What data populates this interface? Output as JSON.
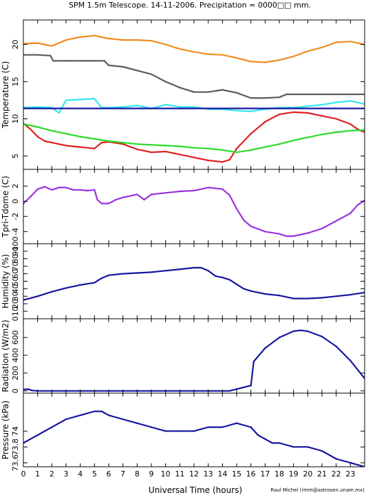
{
  "title": "SPM 1.5m Telescope. 14-11-2006. Precipitation = 0000□□ mm.",
  "credit": "Raul Michel (rmm@astrosen.unam.mx)",
  "chart_data": [
    {
      "type": "scatter",
      "ylabel": "Temperature (C)",
      "xlim": [
        0,
        24
      ],
      "ylim": [
        3.2,
        23.3
      ],
      "yticks": [
        5,
        10,
        15,
        20
      ],
      "series": [
        {
          "color": "#f08c1e",
          "x": [
            0,
            1,
            2,
            3,
            4,
            5,
            6,
            7,
            8,
            9,
            10,
            11,
            12,
            13,
            14,
            15,
            16,
            17,
            18,
            19,
            20,
            21,
            22,
            23,
            24
          ],
          "y": [
            20.1,
            20.2,
            19.8,
            20.6,
            21.0,
            21.2,
            20.8,
            20.6,
            20.6,
            20.5,
            20.0,
            19.4,
            19.0,
            18.7,
            18.6,
            18.2,
            17.7,
            17.6,
            17.9,
            18.4,
            19.1,
            19.6,
            20.3,
            20.4,
            20.0
          ]
        },
        {
          "color": "#5a5a5a",
          "x": [
            0,
            1,
            1.9,
            2.1,
            3,
            4,
            5,
            5.7,
            6,
            7,
            8,
            9,
            10,
            11,
            12,
            13,
            14,
            15,
            16,
            17,
            18,
            18.5,
            24
          ],
          "y": [
            18.6,
            18.6,
            18.5,
            17.8,
            17.8,
            17.8,
            17.8,
            17.8,
            17.2,
            17.0,
            16.5,
            16.0,
            15.0,
            14.2,
            13.6,
            13.6,
            13.9,
            13.5,
            12.8,
            12.8,
            12.9,
            13.3,
            13.3
          ]
        },
        {
          "color": "#30e8ec",
          "x": [
            0,
            1,
            2,
            2.5,
            3,
            4,
            5,
            5.5,
            6,
            7,
            8,
            9,
            10,
            11,
            12,
            13,
            14,
            15,
            16,
            17,
            18,
            19,
            20,
            21,
            22,
            23,
            24
          ],
          "y": [
            11.5,
            11.6,
            11.5,
            10.8,
            12.5,
            12.6,
            12.7,
            11.5,
            11.5,
            11.6,
            11.8,
            11.4,
            11.9,
            11.6,
            11.6,
            11.3,
            11.3,
            11.1,
            11.0,
            11.3,
            11.5,
            11.5,
            11.7,
            11.9,
            12.2,
            12.4,
            12.0
          ]
        },
        {
          "color": "#1414a0",
          "x": [
            0,
            24
          ],
          "y": [
            11.4,
            11.4
          ]
        },
        {
          "color": "#e01e1e",
          "x": [
            0,
            0.5,
            1,
            1.5,
            2,
            2.5,
            3,
            4,
            5,
            5.5,
            6,
            7,
            8,
            9,
            10,
            11,
            12,
            13,
            14,
            14.5,
            15,
            16,
            17,
            18,
            19,
            20,
            21,
            22,
            23,
            23.5,
            24
          ],
          "y": [
            9.4,
            8.6,
            7.6,
            7.0,
            6.8,
            6.6,
            6.4,
            6.2,
            6.0,
            6.8,
            6.9,
            6.6,
            5.9,
            5.5,
            5.6,
            5.2,
            4.8,
            4.4,
            4.2,
            4.5,
            6.0,
            8.0,
            9.6,
            10.6,
            10.9,
            10.8,
            10.4,
            10.0,
            9.3,
            8.6,
            8.2
          ]
        },
        {
          "color": "#28dc28",
          "x": [
            0,
            1,
            2,
            3,
            4,
            5,
            6,
            7,
            8,
            9,
            10,
            11,
            12,
            13,
            14,
            15,
            16,
            17,
            18,
            19,
            20,
            21,
            22,
            23,
            24
          ],
          "y": [
            9.3,
            8.9,
            8.4,
            8.0,
            7.6,
            7.3,
            7.0,
            6.8,
            6.6,
            6.5,
            6.4,
            6.3,
            6.1,
            6.0,
            5.8,
            5.5,
            5.8,
            6.2,
            6.6,
            7.1,
            7.5,
            7.9,
            8.2,
            8.4,
            8.5
          ]
        }
      ]
    },
    {
      "type": "scatter",
      "ylabel": "Tpri-Tdome (C)",
      "xlim": [
        0,
        24
      ],
      "ylim": [
        -5.6,
        4.2
      ],
      "yticks": [
        -4,
        -2,
        0,
        2
      ],
      "series": [
        {
          "color": "#9b30e0",
          "x": [
            0,
            0.5,
            1,
            1.5,
            2,
            2.5,
            3,
            3.5,
            4,
            4.5,
            5,
            5.2,
            5.5,
            6,
            6.5,
            7,
            8,
            8.5,
            9,
            10,
            11,
            12,
            13,
            14,
            14.5,
            15,
            15.5,
            16,
            17,
            18,
            18.5,
            19,
            20,
            21,
            22,
            23,
            23.5,
            24
          ],
          "y": [
            -0.3,
            0.6,
            1.6,
            1.9,
            1.5,
            1.8,
            1.8,
            1.5,
            1.5,
            1.4,
            1.5,
            0.2,
            -0.3,
            -0.3,
            0.2,
            0.5,
            0.9,
            0.2,
            0.9,
            1.1,
            1.3,
            1.4,
            1.8,
            1.6,
            0.8,
            -1.0,
            -2.5,
            -3.3,
            -4.0,
            -4.3,
            -4.6,
            -4.6,
            -4.2,
            -3.6,
            -2.6,
            -1.6,
            -0.5,
            0.1
          ]
        }
      ]
    },
    {
      "type": "scatter",
      "ylabel": "Humidity (%)",
      "xlim": [
        0,
        24
      ],
      "ylim": [
        0,
        100
      ],
      "yticks": [
        0,
        10,
        20,
        30,
        40,
        50,
        60,
        70,
        80,
        90,
        100
      ],
      "series": [
        {
          "color": "#1414a0",
          "x": [
            0,
            1,
            2,
            3,
            4,
            5,
            5.5,
            6,
            7,
            8,
            9,
            10,
            11,
            12,
            12.5,
            13,
            13.5,
            14,
            14.5,
            15,
            15.5,
            16,
            17,
            18,
            19,
            20,
            21,
            22,
            23,
            24
          ],
          "y": [
            25,
            30,
            36,
            41,
            45,
            48,
            54,
            58,
            60,
            61,
            62,
            64,
            66,
            68,
            68,
            64,
            57,
            55,
            52,
            46,
            40,
            37,
            33,
            31,
            27,
            27,
            28,
            30,
            32,
            35
          ]
        }
      ]
    },
    {
      "type": "scatter",
      "ylabel": "Radiation (W/m2)",
      "xlim": [
        0,
        24
      ],
      "ylim": [
        -25,
        810
      ],
      "yticks": [
        0,
        200,
        400,
        600
      ],
      "series": [
        {
          "color": "#1414a0",
          "x": [
            0,
            0.3,
            0.6,
            1,
            2,
            3,
            4,
            5,
            6,
            7,
            8,
            9,
            10,
            11,
            12,
            13,
            14,
            14.5,
            15,
            15.5,
            16,
            16.2,
            17,
            18,
            19,
            19.5,
            20,
            21,
            22,
            23,
            24
          ],
          "y": [
            15,
            20,
            5,
            0,
            0,
            0,
            0,
            0,
            0,
            0,
            0,
            0,
            0,
            0,
            0,
            0,
            0,
            0,
            20,
            40,
            60,
            330,
            480,
            600,
            670,
            680,
            670,
            610,
            500,
            340,
            140
          ]
        }
      ]
    },
    {
      "type": "scatter",
      "ylabel": "Pressure (kPa)",
      "xlim": [
        0,
        24
      ],
      "ylim": [
        73.55,
        74.48
      ],
      "yticks": [
        73.6,
        73.8,
        74
      ],
      "series": [
        {
          "color": "#1414a0",
          "x": [
            0,
            0.5,
            1,
            1.5,
            2,
            2.5,
            3,
            4,
            5,
            5.5,
            6,
            7,
            8,
            9,
            10,
            11,
            12,
            13,
            14,
            15,
            16,
            16.5,
            17,
            17.5,
            18,
            19,
            20,
            21,
            22,
            23,
            24
          ],
          "y": [
            73.85,
            73.9,
            73.95,
            74.0,
            74.05,
            74.1,
            74.15,
            74.2,
            74.25,
            74.25,
            74.2,
            74.15,
            74.1,
            74.05,
            74.0,
            74.0,
            74.0,
            74.05,
            74.05,
            74.1,
            74.05,
            73.95,
            73.9,
            73.85,
            73.85,
            73.8,
            73.8,
            73.75,
            73.65,
            73.6,
            73.55
          ]
        }
      ]
    }
  ],
  "xaxis": {
    "label": "Universal Time (hours)",
    "ticks": [
      "0",
      "1",
      "2",
      "3",
      "4",
      "5",
      "6",
      "7",
      "8",
      "9",
      "10",
      "11",
      "12",
      "13",
      "14",
      "15",
      "16",
      "17",
      "18",
      "19",
      "20",
      "21",
      "22",
      "23"
    ]
  }
}
